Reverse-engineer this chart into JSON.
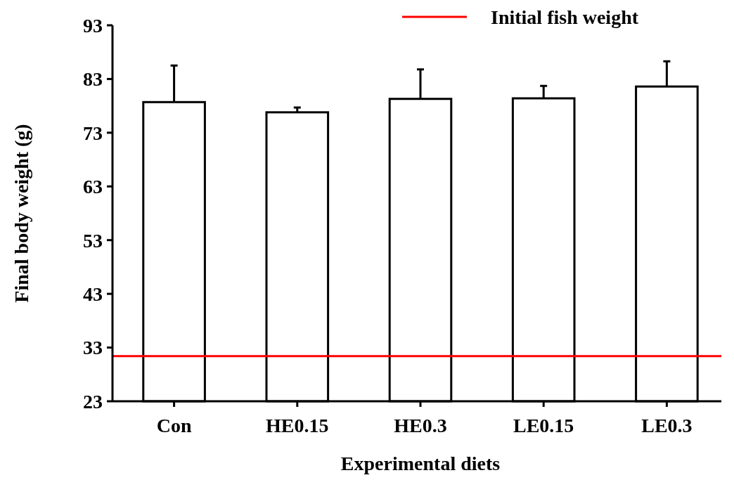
{
  "chart_data": {
    "type": "bar",
    "xlabel": "Experimental diets",
    "ylabel": "Final body weight (g)",
    "categories": [
      "Con",
      "HE0.15",
      "HE0.3",
      "LE0.15",
      "LE0.3"
    ],
    "values": [
      78.7,
      76.8,
      79.3,
      79.4,
      81.6
    ],
    "errors": [
      [
        78.7,
        85.5
      ],
      [
        76.8,
        77.7
      ],
      [
        79.3,
        84.8
      ],
      [
        79.4,
        81.7
      ],
      [
        81.6,
        86.3
      ]
    ],
    "color": "#ffffff",
    "ylim": [
      23,
      93
    ],
    "yticks": [
      23,
      33,
      43,
      53,
      63,
      73,
      83,
      93
    ],
    "ref_lines": [
      {
        "axis": "y",
        "value": 31.4,
        "label": "Initial fish weight",
        "color": "#ff0000"
      }
    ],
    "legend": "top right",
    "grid": false
  }
}
